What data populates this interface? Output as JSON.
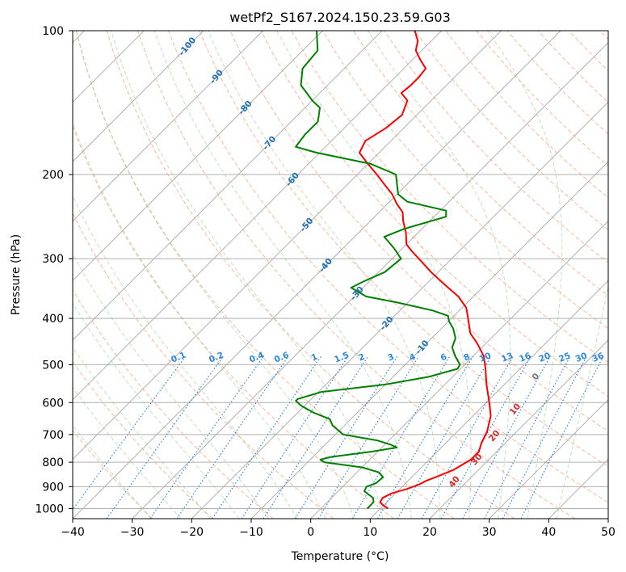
{
  "chart_data": {
    "type": "line",
    "title": "wetPf2_S167.2024.150.23.59.G03",
    "xlabel": "Temperature (°C)",
    "ylabel": "Pressure (hPa)",
    "xlim": [
      -40,
      50
    ],
    "ylim": [
      1050,
      100
    ],
    "y_scale": "log",
    "skew_deg": 45,
    "grid": true,
    "x_ticks": [
      -40,
      -30,
      -20,
      -10,
      0,
      10,
      20,
      30,
      40,
      50
    ],
    "y_ticks": [
      100,
      200,
      300,
      400,
      500,
      600,
      700,
      800,
      900,
      1000
    ],
    "series": [
      {
        "color": "#ff0000",
        "points": [
          [
            1000,
            11.3
          ],
          [
            985,
            10.0
          ],
          [
            970,
            8.9
          ],
          [
            950,
            8.6
          ],
          [
            930,
            9.3
          ],
          [
            910,
            11.2
          ],
          [
            890,
            12.5
          ],
          [
            875,
            13.0
          ],
          [
            860,
            14.0
          ],
          [
            830,
            15.8
          ],
          [
            790,
            17.0
          ],
          [
            760,
            17.0
          ],
          [
            730,
            16.0
          ],
          [
            690,
            15.0
          ],
          [
            640,
            13.0
          ],
          [
            600,
            10.5
          ],
          [
            550,
            7.0
          ],
          [
            510,
            4.2
          ],
          [
            480,
            1.8
          ],
          [
            450,
            -1.6
          ],
          [
            430,
            -4.3
          ],
          [
            400,
            -7.2
          ],
          [
            380,
            -9.3
          ],
          [
            360,
            -12.5
          ],
          [
            340,
            -16.8
          ],
          [
            320,
            -21.2
          ],
          [
            300,
            -25.5
          ],
          [
            290,
            -27.8
          ],
          [
            280,
            -30.0
          ],
          [
            265,
            -32.0
          ],
          [
            250,
            -34.5
          ],
          [
            240,
            -36.0
          ],
          [
            230,
            -38.5
          ],
          [
            220,
            -40.8
          ],
          [
            210,
            -43.7
          ],
          [
            200,
            -46.7
          ],
          [
            190,
            -50.0
          ],
          [
            180,
            -53.3
          ],
          [
            170,
            -54.3
          ],
          [
            160,
            -53.0
          ],
          [
            150,
            -52.5
          ],
          [
            140,
            -54.0
          ],
          [
            135,
            -56.3
          ],
          [
            130,
            -56.0
          ],
          [
            125,
            -56.0
          ],
          [
            120,
            -56.3
          ],
          [
            115,
            -58.7
          ],
          [
            110,
            -61.0
          ],
          [
            105,
            -62.3
          ],
          [
            100,
            -64.5
          ]
        ]
      },
      {
        "color": "#008000",
        "points": [
          [
            1000,
            7.8
          ],
          [
            970,
            7.8
          ],
          [
            950,
            7.0
          ],
          [
            920,
            4.4
          ],
          [
            900,
            4.0
          ],
          [
            885,
            5.0
          ],
          [
            860,
            5.2
          ],
          [
            840,
            3.7
          ],
          [
            820,
            0.0
          ],
          [
            800,
            -7.2
          ],
          [
            790,
            -8.3
          ],
          [
            780,
            -7.0
          ],
          [
            760,
            -1.0
          ],
          [
            745,
            2.5
          ],
          [
            735,
            1.0
          ],
          [
            720,
            -2.0
          ],
          [
            700,
            -8.7
          ],
          [
            670,
            -12.0
          ],
          [
            650,
            -13.5
          ],
          [
            630,
            -17.3
          ],
          [
            610,
            -20.5
          ],
          [
            595,
            -22.3
          ],
          [
            590,
            -22.3
          ],
          [
            570,
            -19.5
          ],
          [
            550,
            -10.0
          ],
          [
            530,
            -4.0
          ],
          [
            510,
            -0.5
          ],
          [
            500,
            -0.8
          ],
          [
            480,
            -3.0
          ],
          [
            460,
            -5.0
          ],
          [
            440,
            -6.0
          ],
          [
            420,
            -8.0
          ],
          [
            405,
            -10.0
          ],
          [
            395,
            -11.0
          ],
          [
            385,
            -14.5
          ],
          [
            370,
            -22.0
          ],
          [
            360,
            -28.0
          ],
          [
            345,
            -32.0
          ],
          [
            335,
            -31.0
          ],
          [
            320,
            -29.0
          ],
          [
            300,
            -28.5
          ],
          [
            285,
            -31.5
          ],
          [
            270,
            -35.0
          ],
          [
            260,
            -33.0
          ],
          [
            245,
            -28.0
          ],
          [
            238,
            -29.0
          ],
          [
            228,
            -37.0
          ],
          [
            220,
            -39.8
          ],
          [
            200,
            -43.5
          ],
          [
            190,
            -49.5
          ],
          [
            180,
            -60.5
          ],
          [
            175,
            -65.0
          ],
          [
            165,
            -65.5
          ],
          [
            155,
            -65.5
          ],
          [
            145,
            -67.5
          ],
          [
            140,
            -70.0
          ],
          [
            130,
            -74.5
          ],
          [
            120,
            -77.0
          ],
          [
            110,
            -77.5
          ],
          [
            100,
            -81.0
          ]
        ]
      }
    ],
    "dry_adiabat_labels": [
      "-100",
      "-90",
      "-80",
      "-70",
      "-60",
      "-50",
      "-40",
      "-30",
      "-20",
      "-10"
    ],
    "moist_adiabat_labels": [
      "0",
      "10",
      "20",
      "30",
      "40"
    ],
    "mixing_ratio_labels": [
      "0.1",
      "0.2",
      "0.4",
      "0.6",
      "1",
      "1.5",
      "2",
      "3",
      "4",
      "6",
      "8",
      "10",
      "13",
      "16",
      "20",
      "25",
      "30",
      "36"
    ]
  }
}
